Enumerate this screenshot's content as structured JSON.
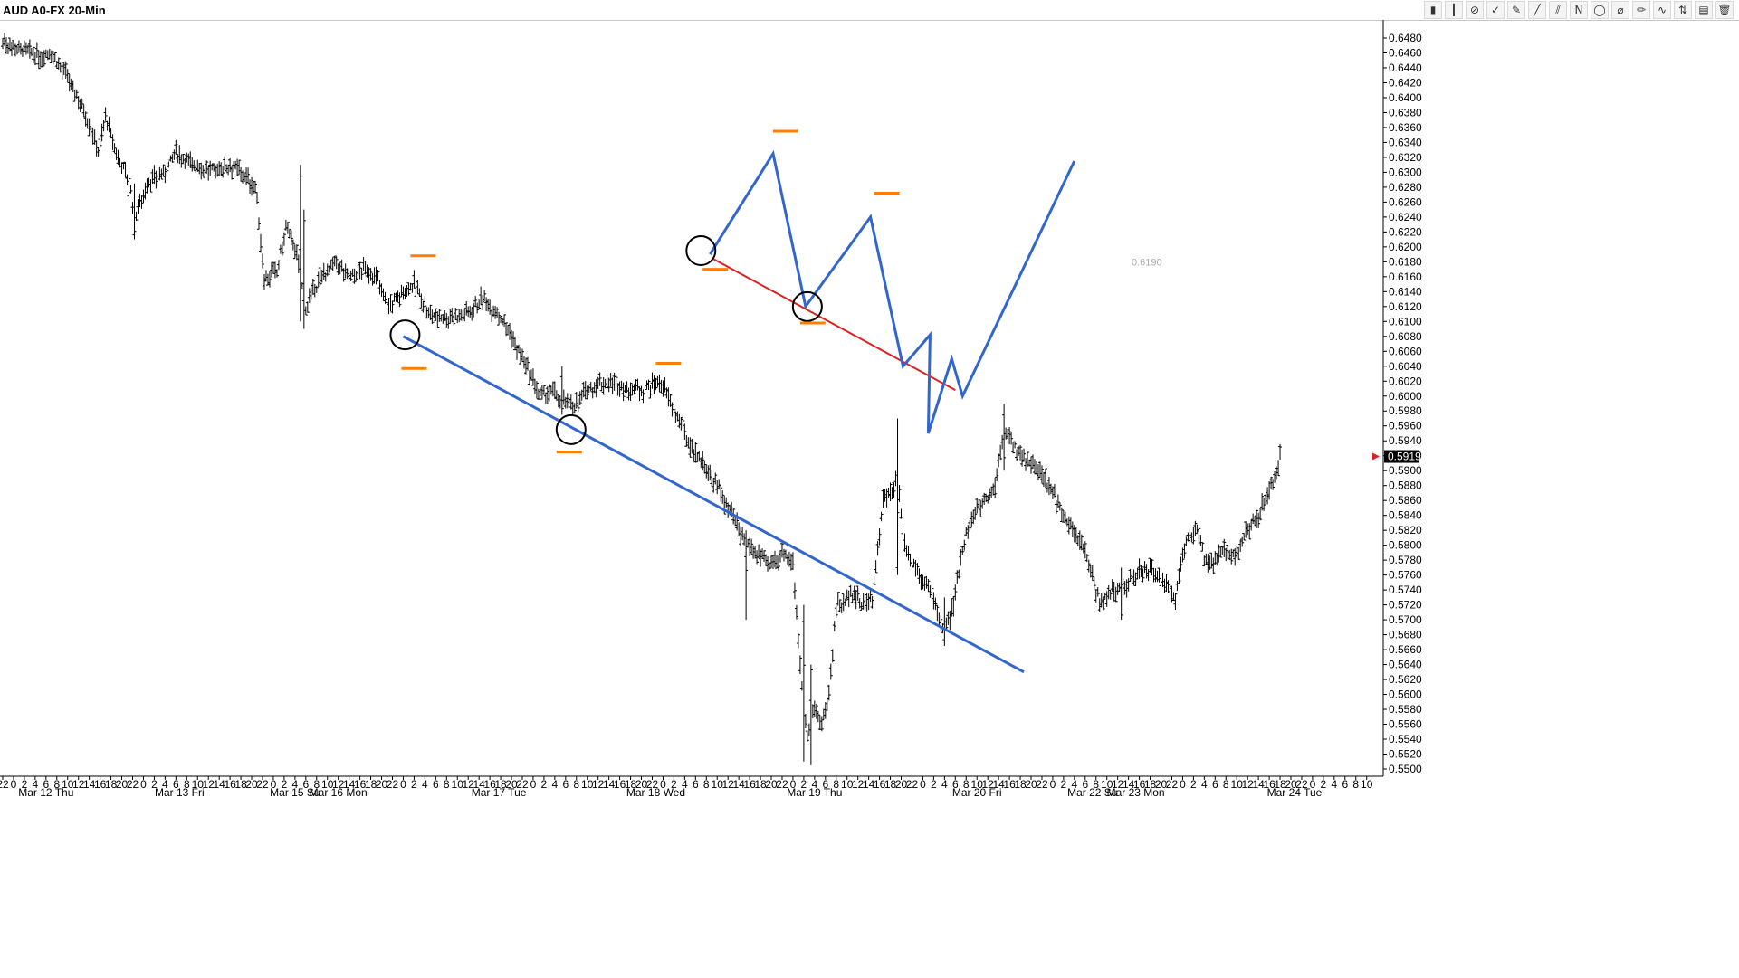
{
  "window": {
    "title": "AUD A0-FX 20-Min"
  },
  "toolbar": {
    "tools": [
      {
        "name": "candles-icon",
        "glyph": "▮"
      },
      {
        "name": "bar-icon",
        "glyph": "┃"
      },
      {
        "name": "ban-icon",
        "glyph": "⊘"
      },
      {
        "name": "checkmark-icon",
        "glyph": "✓"
      },
      {
        "name": "brush-icon",
        "glyph": "✎"
      },
      {
        "name": "line-tool-icon",
        "glyph": "╱"
      },
      {
        "name": "channel-tool-icon",
        "glyph": "⫽"
      },
      {
        "name": "n-icon",
        "glyph": "N"
      },
      {
        "name": "circle-tool-icon",
        "glyph": "◯"
      },
      {
        "name": "fib-icon",
        "glyph": "⌀"
      },
      {
        "name": "pencil-icon",
        "glyph": "✏"
      },
      {
        "name": "zigzag-icon",
        "glyph": "∿"
      },
      {
        "name": "up-down-icon",
        "glyph": "⇅"
      },
      {
        "name": "print-icon",
        "glyph": "▤"
      },
      {
        "name": "trash-icon",
        "glyph": "🗑"
      }
    ]
  },
  "chart_data": {
    "type": "bar",
    "title": "AUD A0-FX 20-Min",
    "ylim": [
      0.55,
      0.648
    ],
    "y_tick_step": 0.002,
    "y_tick_labels": [
      "0.6480",
      "0.6460",
      "0.6440",
      "0.6420",
      "0.6400",
      "0.6380",
      "0.6360",
      "0.6340",
      "0.6320",
      "0.6300",
      "0.6280",
      "0.6260",
      "0.6240",
      "0.6220",
      "0.6200",
      "0.6180",
      "0.6160",
      "0.6140",
      "0.6120",
      "0.6100",
      "0.6080",
      "0.6060",
      "0.6040",
      "0.6020",
      "0.6000",
      "0.5980",
      "0.5960",
      "0.5940",
      "0.5920",
      "0.5900",
      "0.5880",
      "0.5860",
      "0.5840",
      "0.5820",
      "0.5800",
      "0.5780",
      "0.5760",
      "0.5740",
      "0.5720",
      "0.5700",
      "0.5680",
      "0.5660",
      "0.5640",
      "0.5620",
      "0.5600",
      "0.5580",
      "0.5560",
      "0.5540",
      "0.5520",
      "0.5500"
    ],
    "last_price": "0.5919",
    "annotation_price": "0.6190",
    "x_hour_labels": [
      "22",
      "0",
      "2",
      "4",
      "6",
      "8",
      "10",
      "12",
      "14",
      "16",
      "18",
      "20",
      "22",
      "0",
      "2",
      "4",
      "6",
      "8",
      "10",
      "12",
      "14",
      "16",
      "18",
      "20",
      "22",
      "0",
      "2",
      "4",
      "6",
      "8",
      "10",
      "12",
      "14",
      "16",
      "18",
      "20",
      "22",
      "0",
      "2",
      "4",
      "6",
      "8",
      "10",
      "12",
      "14",
      "16",
      "18",
      "20",
      "22",
      "0",
      "2",
      "4",
      "6",
      "8",
      "10",
      "12",
      "14",
      "16",
      "18",
      "20",
      "22",
      "0",
      "2",
      "4",
      "6",
      "8",
      "10",
      "12",
      "14",
      "16",
      "18",
      "20",
      "22",
      "0",
      "2",
      "4",
      "6",
      "8",
      "10",
      "12",
      "14",
      "16",
      "18",
      "20",
      "22",
      "0",
      "2",
      "4",
      "6",
      "8",
      "10",
      "12",
      "14",
      "16",
      "18",
      "20",
      "22",
      "0",
      "2",
      "4",
      "6",
      "8",
      "10",
      "12",
      "14",
      "16",
      "18",
      "20",
      "22",
      "0",
      "2",
      "4",
      "6",
      "8",
      "10",
      "12",
      "14",
      "16",
      "18",
      "20",
      "22",
      "0",
      "2",
      "4",
      "6",
      "8",
      "10"
    ],
    "x_date_labels": [
      "Mar 12 Thu",
      "Mar 13 Fri",
      "Mar 15 Su",
      "Mar 16 Mon",
      "Mar 17 Tue",
      "Mar 18 Wed",
      "Mar 19 Thu",
      "Mar 20 Fri",
      "Mar 22 Su",
      "Mar 23 Mon",
      "Mar 24 Tue"
    ],
    "x_range_bars": [
      0,
      708
    ],
    "x_hour_spacing_bars": 6,
    "date_label_bar_index": [
      24,
      98,
      162,
      186,
      275,
      362,
      450,
      540,
      604,
      628,
      716
    ],
    "anchors": [
      [
        0,
        0.6475
      ],
      [
        10,
        0.6465
      ],
      [
        20,
        0.6455
      ],
      [
        27,
        0.646
      ],
      [
        35,
        0.643
      ],
      [
        45,
        0.6385
      ],
      [
        53,
        0.633
      ],
      [
        57,
        0.6375
      ],
      [
        62,
        0.633
      ],
      [
        70,
        0.629
      ],
      [
        73,
        0.624
      ],
      [
        80,
        0.6285
      ],
      [
        90,
        0.63
      ],
      [
        96,
        0.6325
      ],
      [
        106,
        0.631
      ],
      [
        115,
        0.63
      ],
      [
        126,
        0.631
      ],
      [
        134,
        0.6295
      ],
      [
        140,
        0.628
      ],
      [
        145,
        0.616
      ],
      [
        152,
        0.6165
      ],
      [
        157,
        0.6225
      ],
      [
        162,
        0.62
      ],
      [
        168,
        0.612
      ],
      [
        178,
        0.6165
      ],
      [
        185,
        0.6175
      ],
      [
        192,
        0.616
      ],
      [
        200,
        0.617
      ],
      [
        207,
        0.616
      ],
      [
        214,
        0.612
      ],
      [
        220,
        0.6135
      ],
      [
        228,
        0.615
      ],
      [
        236,
        0.611
      ],
      [
        247,
        0.6105
      ],
      [
        256,
        0.611
      ],
      [
        266,
        0.613
      ],
      [
        275,
        0.611
      ],
      [
        282,
        0.608
      ],
      [
        290,
        0.604
      ],
      [
        298,
        0.6
      ],
      [
        305,
        0.6005
      ],
      [
        312,
        0.599
      ],
      [
        318,
        0.599
      ],
      [
        325,
        0.601
      ],
      [
        335,
        0.602
      ],
      [
        345,
        0.601
      ],
      [
        355,
        0.601
      ],
      [
        365,
        0.602
      ],
      [
        372,
        0.598
      ],
      [
        380,
        0.594
      ],
      [
        388,
        0.591
      ],
      [
        396,
        0.588
      ],
      [
        404,
        0.584
      ],
      [
        410,
        0.581
      ],
      [
        418,
        0.579
      ],
      [
        425,
        0.577
      ],
      [
        432,
        0.579
      ],
      [
        438,
        0.578
      ],
      [
        442,
        0.564
      ],
      [
        446,
        0.554
      ],
      [
        450,
        0.558
      ],
      [
        454,
        0.556
      ],
      [
        458,
        0.56
      ],
      [
        462,
        0.572
      ],
      [
        466,
        0.572
      ],
      [
        470,
        0.574
      ],
      [
        476,
        0.572
      ],
      [
        482,
        0.573
      ],
      [
        488,
        0.586
      ],
      [
        492,
        0.587
      ],
      [
        496,
        0.589
      ],
      [
        500,
        0.58
      ],
      [
        508,
        0.576
      ],
      [
        516,
        0.573
      ],
      [
        522,
        0.568
      ],
      [
        527,
        0.572
      ],
      [
        532,
        0.58
      ],
      [
        538,
        0.584
      ],
      [
        544,
        0.586
      ],
      [
        550,
        0.588
      ],
      [
        555,
        0.596
      ],
      [
        560,
        0.593
      ],
      [
        566,
        0.592
      ],
      [
        574,
        0.59
      ],
      [
        582,
        0.587
      ],
      [
        590,
        0.583
      ],
      [
        596,
        0.581
      ],
      [
        602,
        0.578
      ],
      [
        608,
        0.572
      ],
      [
        614,
        0.574
      ],
      [
        620,
        0.574
      ],
      [
        628,
        0.576
      ],
      [
        636,
        0.577
      ],
      [
        642,
        0.575
      ],
      [
        650,
        0.573
      ],
      [
        656,
        0.581
      ],
      [
        662,
        0.582
      ],
      [
        668,
        0.577
      ],
      [
        676,
        0.579
      ],
      [
        684,
        0.579
      ],
      [
        690,
        0.582
      ],
      [
        696,
        0.584
      ],
      [
        702,
        0.587
      ],
      [
        706,
        0.59
      ],
      [
        708,
        0.5919
      ]
    ],
    "spikes": [
      [
        70,
        0.6262,
        0.6305
      ],
      [
        73,
        0.621,
        0.6285
      ],
      [
        165,
        0.61,
        0.631
      ],
      [
        167,
        0.609,
        0.625
      ],
      [
        310,
        0.5975,
        0.604
      ],
      [
        412,
        0.57,
        0.582
      ],
      [
        444,
        0.551,
        0.572
      ],
      [
        448,
        0.5505,
        0.564
      ],
      [
        496,
        0.576,
        0.597
      ],
      [
        522,
        0.5665,
        0.573
      ],
      [
        555,
        0.59,
        0.599
      ],
      [
        620,
        0.57,
        0.577
      ]
    ],
    "drawings": {
      "blue_trendline": [
        [
          222,
          0.608
        ],
        [
          566,
          0.563
        ]
      ],
      "blue_path": [
        [
          392,
          0.619
        ],
        [
          427,
          0.6325
        ],
        [
          445,
          0.612
        ],
        [
          481,
          0.624
        ],
        [
          499,
          0.604
        ],
        [
          514,
          0.6082
        ],
        [
          513,
          0.595
        ],
        [
          526,
          0.605
        ],
        [
          532,
          0.6
        ],
        [
          594,
          0.6315
        ]
      ],
      "red_trendline": [
        [
          393,
          0.6185
        ],
        [
          528,
          0.6008
        ]
      ],
      "circles": [
        [
          223,
          0.6082
        ],
        [
          315,
          0.5955
        ],
        [
          387,
          0.6195
        ],
        [
          446,
          0.612
        ]
      ],
      "orange_marks": [
        [
          233,
          0.6188
        ],
        [
          228,
          0.6037
        ],
        [
          314,
          0.5925
        ],
        [
          369,
          0.6044
        ],
        [
          434,
          0.6355
        ],
        [
          395,
          0.617
        ],
        [
          449,
          0.6098
        ],
        [
          490,
          0.6272
        ]
      ]
    },
    "grid": "off",
    "legend": "none"
  }
}
